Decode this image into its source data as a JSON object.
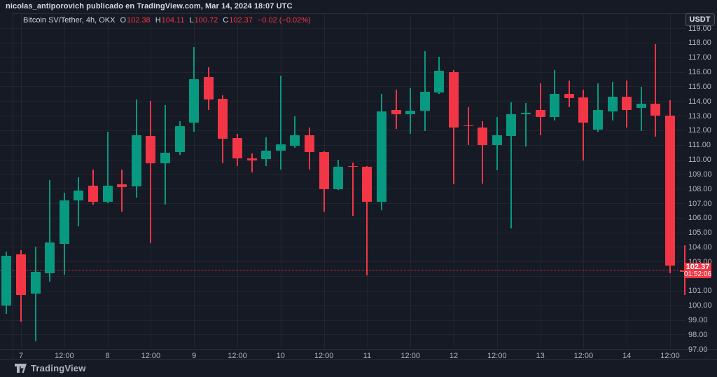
{
  "attribution": "nicolas_antiporovich publicado en TradingView.com, Mar 14, 2024 18:07 UTC",
  "legend": {
    "symbol_title": "Bitcoin SV/Tether, 4h, OKX",
    "o_label": "O",
    "o_value": "102.38",
    "h_label": "H",
    "h_value": "104.11",
    "l_label": "L",
    "l_value": "100.72",
    "c_label": "C",
    "c_value": "102.37",
    "change": "−0.02 (−0.02%)"
  },
  "currency_button_label": "USDT",
  "last_price": {
    "value": "102.37",
    "countdown": "01:52:06",
    "price": 102.37
  },
  "price_axis_labels": [
    {
      "text": "119.00",
      "p": 119
    },
    {
      "text": "118.00",
      "p": 118
    },
    {
      "text": "117.00",
      "p": 117
    },
    {
      "text": "116.00",
      "p": 116
    },
    {
      "text": "115.00",
      "p": 115
    },
    {
      "text": "114.00",
      "p": 114
    },
    {
      "text": "113.00",
      "p": 113
    },
    {
      "text": "112.00",
      "p": 112
    },
    {
      "text": "111.00",
      "p": 111
    },
    {
      "text": "110.00",
      "p": 110
    },
    {
      "text": "109.00",
      "p": 109
    },
    {
      "text": "108.00",
      "p": 108
    },
    {
      "text": "107.00",
      "p": 107
    },
    {
      "text": "106.00",
      "p": 106
    },
    {
      "text": "105.00",
      "p": 105
    },
    {
      "text": "104.00",
      "p": 104
    },
    {
      "text": "103.00",
      "p": 103
    },
    {
      "text": "101.00",
      "p": 101
    },
    {
      "text": "100.00",
      "p": 100
    },
    {
      "text": "99.00",
      "p": 99
    },
    {
      "text": "98.00",
      "p": 98
    },
    {
      "text": "97.00",
      "p": 97
    }
  ],
  "time_axis_labels": [
    "7",
    "12:00",
    "8",
    "12:00",
    "9",
    "12:00",
    "10",
    "12:00",
    "11",
    "12:00",
    "12",
    "12:00",
    "13",
    "12:00",
    "14",
    "12:00"
  ],
  "footer_brand": "TradingView",
  "colors": {
    "up": "#089981",
    "down": "#f23645",
    "accent": "#f23645",
    "bg": "#161a25"
  },
  "chart_data": {
    "type": "candlestick",
    "title": "Bitcoin SV/Tether, 4h, OKX",
    "symbol": "BSV/USDT",
    "timeframe": "4h",
    "exchange": "OKX",
    "price_range": [
      97,
      119
    ],
    "grid": true,
    "last_price": 102.37,
    "candles": [
      {
        "t": "2024-03-06 20:00",
        "o": 100.0,
        "h": 103.7,
        "l": 99.4,
        "c": 103.4
      },
      {
        "t": "2024-03-07 00:00",
        "o": 103.5,
        "h": 103.8,
        "l": 98.9,
        "c": 100.7
      },
      {
        "t": "2024-03-07 04:00",
        "o": 100.8,
        "h": 104.0,
        "l": 97.55,
        "c": 102.3
      },
      {
        "t": "2024-03-07 08:00",
        "o": 102.2,
        "h": 108.6,
        "l": 101.6,
        "c": 104.3
      },
      {
        "t": "2024-03-07 12:00",
        "o": 104.2,
        "h": 107.7,
        "l": 102.1,
        "c": 107.2
      },
      {
        "t": "2024-03-07 16:00",
        "o": 107.2,
        "h": 108.8,
        "l": 105.4,
        "c": 107.85
      },
      {
        "t": "2024-03-07 20:00",
        "o": 108.2,
        "h": 109.3,
        "l": 106.9,
        "c": 107.1
      },
      {
        "t": "2024-03-08 00:00",
        "o": 107.1,
        "h": 111.9,
        "l": 107.0,
        "c": 108.2
      },
      {
        "t": "2024-03-08 04:00",
        "o": 108.3,
        "h": 109.3,
        "l": 106.4,
        "c": 108.1
      },
      {
        "t": "2024-03-08 08:00",
        "o": 108.15,
        "h": 114.1,
        "l": 107.4,
        "c": 111.65
      },
      {
        "t": "2024-03-08 12:00",
        "o": 111.6,
        "h": 114.0,
        "l": 104.25,
        "c": 109.75
      },
      {
        "t": "2024-03-08 16:00",
        "o": 109.75,
        "h": 113.7,
        "l": 106.9,
        "c": 110.45
      },
      {
        "t": "2024-03-08 20:00",
        "o": 110.5,
        "h": 112.6,
        "l": 110.3,
        "c": 112.3
      },
      {
        "t": "2024-03-09 00:00",
        "o": 112.5,
        "h": 117.7,
        "l": 111.9,
        "c": 115.5
      },
      {
        "t": "2024-03-09 04:00",
        "o": 115.65,
        "h": 116.3,
        "l": 113.4,
        "c": 114.1
      },
      {
        "t": "2024-03-09 08:00",
        "o": 114.15,
        "h": 114.4,
        "l": 109.75,
        "c": 111.4
      },
      {
        "t": "2024-03-09 12:00",
        "o": 111.45,
        "h": 111.75,
        "l": 109.55,
        "c": 110.05
      },
      {
        "t": "2024-03-09 16:00",
        "o": 110.05,
        "h": 110.4,
        "l": 109.1,
        "c": 109.9
      },
      {
        "t": "2024-03-09 20:00",
        "o": 110.05,
        "h": 111.5,
        "l": 109.55,
        "c": 110.6
      },
      {
        "t": "2024-03-10 00:00",
        "o": 110.6,
        "h": 115.75,
        "l": 109.3,
        "c": 111.05
      },
      {
        "t": "2024-03-10 04:00",
        "o": 110.95,
        "h": 112.95,
        "l": 110.8,
        "c": 111.65
      },
      {
        "t": "2024-03-10 08:00",
        "o": 111.65,
        "h": 112.2,
        "l": 109.3,
        "c": 110.5
      },
      {
        "t": "2024-03-10 12:00",
        "o": 110.5,
        "h": 110.55,
        "l": 106.4,
        "c": 107.95
      },
      {
        "t": "2024-03-10 16:00",
        "o": 107.95,
        "h": 110.0,
        "l": 107.9,
        "c": 109.5
      },
      {
        "t": "2024-03-10 20:00",
        "o": 109.56,
        "h": 109.8,
        "l": 106.15,
        "c": 109.55
      },
      {
        "t": "2024-03-11 00:00",
        "o": 109.5,
        "h": 109.55,
        "l": 102.05,
        "c": 107.1
      },
      {
        "t": "2024-03-11 04:00",
        "o": 107.1,
        "h": 114.5,
        "l": 106.5,
        "c": 113.3
      },
      {
        "t": "2024-03-11 08:00",
        "o": 113.4,
        "h": 114.8,
        "l": 112.1,
        "c": 113.1
      },
      {
        "t": "2024-03-11 12:00",
        "o": 113.1,
        "h": 114.85,
        "l": 111.75,
        "c": 113.35
      },
      {
        "t": "2024-03-11 16:00",
        "o": 113.35,
        "h": 117.4,
        "l": 111.95,
        "c": 114.65
      },
      {
        "t": "2024-03-11 20:00",
        "o": 114.6,
        "h": 117.05,
        "l": 114.5,
        "c": 116.05
      },
      {
        "t": "2024-03-12 00:00",
        "o": 116.0,
        "h": 116.1,
        "l": 108.3,
        "c": 112.2
      },
      {
        "t": "2024-03-12 04:00",
        "o": 112.35,
        "h": 113.6,
        "l": 111.0,
        "c": 112.3
      },
      {
        "t": "2024-03-12 08:00",
        "o": 112.2,
        "h": 112.6,
        "l": 108.35,
        "c": 111.0
      },
      {
        "t": "2024-03-12 12:00",
        "o": 111.0,
        "h": 112.9,
        "l": 109.25,
        "c": 111.65
      },
      {
        "t": "2024-03-12 16:00",
        "o": 111.6,
        "h": 113.9,
        "l": 105.25,
        "c": 113.1
      },
      {
        "t": "2024-03-12 20:00",
        "o": 113.1,
        "h": 113.85,
        "l": 110.9,
        "c": 113.2
      },
      {
        "t": "2024-03-13 00:00",
        "o": 113.4,
        "h": 115.2,
        "l": 111.65,
        "c": 112.9
      },
      {
        "t": "2024-03-13 04:00",
        "o": 112.9,
        "h": 116.1,
        "l": 112.65,
        "c": 114.5
      },
      {
        "t": "2024-03-13 08:00",
        "o": 114.5,
        "h": 115.4,
        "l": 113.6,
        "c": 114.2
      },
      {
        "t": "2024-03-13 12:00",
        "o": 114.25,
        "h": 114.8,
        "l": 109.95,
        "c": 112.5
      },
      {
        "t": "2024-03-13 16:00",
        "o": 112.05,
        "h": 115.2,
        "l": 111.9,
        "c": 113.4
      },
      {
        "t": "2024-03-13 20:00",
        "o": 113.3,
        "h": 115.3,
        "l": 112.65,
        "c": 114.3
      },
      {
        "t": "2024-03-14 00:00",
        "o": 114.3,
        "h": 115.4,
        "l": 112.2,
        "c": 113.4
      },
      {
        "t": "2024-03-14 04:00",
        "o": 113.5,
        "h": 114.95,
        "l": 111.95,
        "c": 113.8
      },
      {
        "t": "2024-03-14 08:00",
        "o": 113.8,
        "h": 117.9,
        "l": 111.55,
        "c": 113.0
      },
      {
        "t": "2024-03-14 12:00",
        "o": 113.0,
        "h": 114.05,
        "l": 102.2,
        "c": 102.75
      },
      {
        "t": "2024-03-14 16:00",
        "o": 102.38,
        "h": 104.11,
        "l": 100.72,
        "c": 102.37
      }
    ]
  }
}
